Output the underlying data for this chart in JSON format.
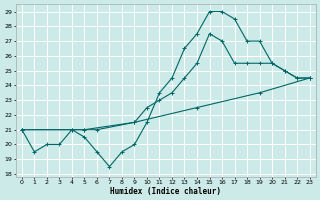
{
  "title": "",
  "xlabel": "Humidex (Indice chaleur)",
  "ylabel": "",
  "bg_color": "#cceae8",
  "grid_color": "#bbdbd9",
  "line_color": "#006666",
  "ylim": [
    17.8,
    29.5
  ],
  "xlim": [
    -0.5,
    23.5
  ],
  "yticks": [
    18,
    19,
    20,
    21,
    22,
    23,
    24,
    25,
    26,
    27,
    28,
    29
  ],
  "xticks": [
    0,
    1,
    2,
    3,
    4,
    5,
    6,
    7,
    8,
    9,
    10,
    11,
    12,
    13,
    14,
    15,
    16,
    17,
    18,
    19,
    20,
    21,
    22,
    23
  ],
  "line1_x": [
    0,
    1,
    2,
    3,
    4,
    5,
    6,
    7,
    8,
    9,
    10,
    11,
    12,
    13,
    14,
    15,
    16,
    17,
    18,
    19,
    20,
    21,
    22,
    23
  ],
  "line1_y": [
    21.0,
    19.5,
    20.0,
    20.0,
    21.0,
    20.5,
    19.5,
    18.5,
    19.5,
    20.0,
    21.5,
    23.5,
    24.5,
    26.5,
    27.5,
    29.0,
    29.0,
    28.5,
    27.0,
    27.0,
    25.5,
    25.0,
    24.5,
    24.5
  ],
  "line2_x": [
    0,
    4,
    5,
    6,
    9,
    10,
    11,
    12,
    13,
    14,
    15,
    16,
    17,
    18,
    19,
    20,
    21,
    22,
    23
  ],
  "line2_y": [
    21.0,
    21.0,
    21.0,
    21.0,
    21.5,
    22.5,
    23.0,
    23.5,
    24.5,
    25.5,
    27.5,
    27.0,
    25.5,
    25.5,
    25.5,
    25.5,
    25.0,
    24.5,
    24.5
  ],
  "line3_x": [
    0,
    5,
    9,
    14,
    19,
    23
  ],
  "line3_y": [
    21.0,
    21.0,
    21.5,
    22.5,
    23.5,
    24.5
  ]
}
